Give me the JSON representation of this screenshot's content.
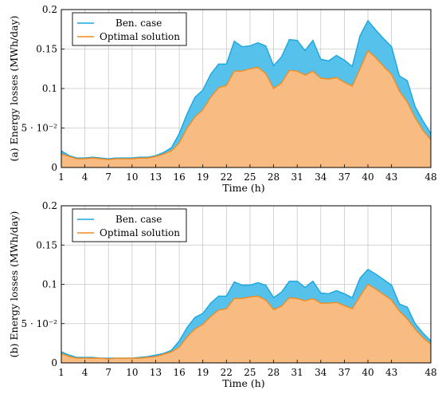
{
  "chart_data": [
    {
      "type": "area",
      "ylabel": "(a) Energy losses (MWh/day)",
      "xlabel": "Time (h)",
      "xlim": [
        1,
        48
      ],
      "ylim": [
        0,
        0.2
      ],
      "xticks": [
        1,
        4,
        7,
        10,
        13,
        16,
        19,
        22,
        25,
        28,
        31,
        34,
        37,
        40,
        43,
        48
      ],
      "yticks": [
        {
          "value": 0,
          "label": "0"
        },
        {
          "value": 0.05,
          "label": "5 · 10⁻²"
        },
        {
          "value": 0.1,
          "label": "0.1"
        },
        {
          "value": 0.15,
          "label": "0.15"
        },
        {
          "value": 0.2,
          "label": "0.2"
        }
      ],
      "grid": true,
      "legend_position": "top-left",
      "x": [
        1,
        2,
        3,
        4,
        5,
        6,
        7,
        8,
        9,
        10,
        11,
        12,
        13,
        14,
        15,
        16,
        17,
        18,
        19,
        20,
        21,
        22,
        23,
        24,
        25,
        26,
        27,
        28,
        29,
        30,
        31,
        32,
        33,
        34,
        35,
        36,
        37,
        38,
        39,
        40,
        41,
        42,
        43,
        44,
        45,
        46,
        47,
        48
      ],
      "series": [
        {
          "name": "Ben. case",
          "color": "#1ba6e0",
          "fill": "#56c1ea",
          "values": [
            0.021,
            0.015,
            0.012,
            0.012,
            0.013,
            0.012,
            0.011,
            0.012,
            0.012,
            0.012,
            0.013,
            0.013,
            0.015,
            0.019,
            0.025,
            0.043,
            0.068,
            0.089,
            0.098,
            0.118,
            0.131,
            0.131,
            0.16,
            0.153,
            0.154,
            0.158,
            0.154,
            0.129,
            0.14,
            0.162,
            0.161,
            0.148,
            0.161,
            0.137,
            0.135,
            0.142,
            0.136,
            0.128,
            0.167,
            0.186,
            0.174,
            0.163,
            0.153,
            0.116,
            0.11,
            0.077,
            0.059,
            0.043
          ]
        },
        {
          "name": "Optimal solution",
          "color": "#f28c1e",
          "fill": "#f8bb82",
          "values": [
            0.017,
            0.014,
            0.011,
            0.011,
            0.012,
            0.011,
            0.01,
            0.011,
            0.011,
            0.011,
            0.012,
            0.012,
            0.014,
            0.017,
            0.021,
            0.031,
            0.05,
            0.064,
            0.073,
            0.089,
            0.101,
            0.104,
            0.122,
            0.122,
            0.125,
            0.127,
            0.119,
            0.1,
            0.107,
            0.123,
            0.122,
            0.117,
            0.122,
            0.113,
            0.112,
            0.114,
            0.108,
            0.103,
            0.125,
            0.148,
            0.139,
            0.128,
            0.118,
            0.097,
            0.083,
            0.063,
            0.047,
            0.035
          ]
        }
      ]
    },
    {
      "type": "area",
      "ylabel": "(b) Energy losses (MWh/day)",
      "xlabel": "Time (h)",
      "xlim": [
        1,
        48
      ],
      "ylim": [
        0,
        0.2
      ],
      "xticks": [
        1,
        4,
        7,
        10,
        13,
        16,
        19,
        22,
        25,
        28,
        31,
        34,
        37,
        40,
        43,
        48
      ],
      "yticks": [
        {
          "value": 0,
          "label": "0"
        },
        {
          "value": 0.05,
          "label": "5 · 10⁻²"
        },
        {
          "value": 0.1,
          "label": "0.1"
        },
        {
          "value": 0.15,
          "label": "0.15"
        },
        {
          "value": 0.2,
          "label": "0.2"
        }
      ],
      "grid": true,
      "legend_position": "top-left",
      "x": [
        1,
        2,
        3,
        4,
        5,
        6,
        7,
        8,
        9,
        10,
        11,
        12,
        13,
        14,
        15,
        16,
        17,
        18,
        19,
        20,
        21,
        22,
        23,
        24,
        25,
        26,
        27,
        28,
        29,
        30,
        31,
        32,
        33,
        34,
        35,
        36,
        37,
        38,
        39,
        40,
        41,
        42,
        43,
        44,
        45,
        46,
        47,
        48
      ],
      "series": [
        {
          "name": "Ben. case",
          "color": "#1ba6e0",
          "fill": "#56c1ea",
          "values": [
            0.014,
            0.01,
            0.007,
            0.007,
            0.007,
            0.006,
            0.006,
            0.006,
            0.006,
            0.006,
            0.007,
            0.008,
            0.01,
            0.012,
            0.016,
            0.028,
            0.045,
            0.058,
            0.063,
            0.076,
            0.085,
            0.085,
            0.103,
            0.099,
            0.099,
            0.102,
            0.099,
            0.083,
            0.09,
            0.104,
            0.104,
            0.096,
            0.104,
            0.089,
            0.088,
            0.092,
            0.088,
            0.083,
            0.108,
            0.119,
            0.113,
            0.106,
            0.099,
            0.075,
            0.071,
            0.05,
            0.038,
            0.028
          ]
        },
        {
          "name": "Optimal solution",
          "color": "#f28c1e",
          "fill": "#f8bb82",
          "values": [
            0.012,
            0.008,
            0.006,
            0.006,
            0.006,
            0.006,
            0.005,
            0.006,
            0.006,
            0.006,
            0.006,
            0.007,
            0.008,
            0.011,
            0.014,
            0.02,
            0.033,
            0.043,
            0.049,
            0.059,
            0.067,
            0.069,
            0.082,
            0.082,
            0.084,
            0.085,
            0.08,
            0.068,
            0.072,
            0.083,
            0.082,
            0.079,
            0.082,
            0.076,
            0.076,
            0.077,
            0.073,
            0.069,
            0.085,
            0.1,
            0.094,
            0.087,
            0.08,
            0.066,
            0.056,
            0.043,
            0.032,
            0.024
          ]
        }
      ]
    }
  ]
}
